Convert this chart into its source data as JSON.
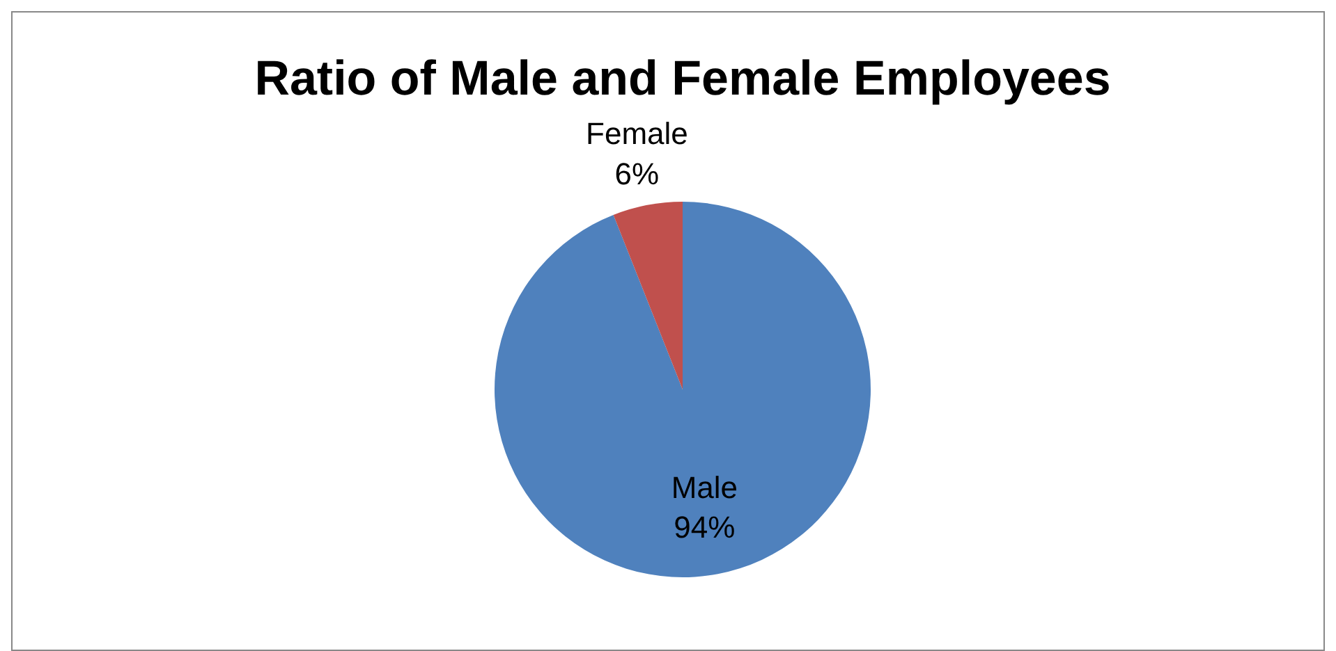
{
  "chart_data": {
    "type": "pie",
    "title": "Ratio of Male and Female Employees",
    "categories": [
      "Male",
      "Female"
    ],
    "values": [
      94,
      6
    ],
    "colors": [
      "#4f81bd",
      "#c0504d"
    ],
    "value_labels": [
      "94%",
      "6%"
    ],
    "legend": false
  }
}
